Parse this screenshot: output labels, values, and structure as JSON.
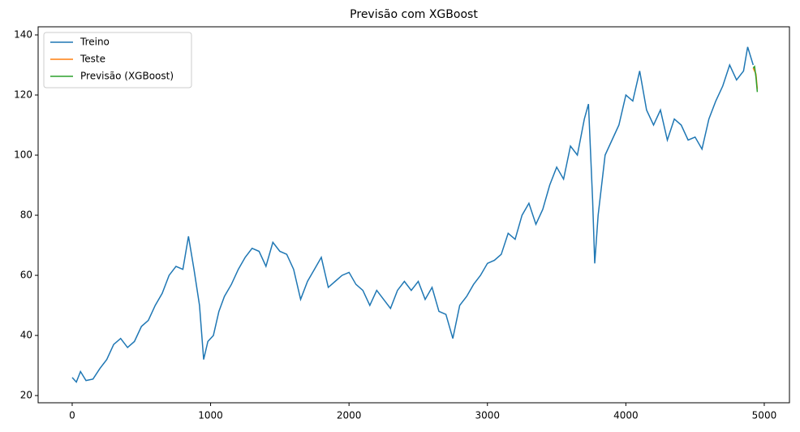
{
  "chart_data": {
    "type": "line",
    "title": "Previsão com XGBoost",
    "xlim": [
      -246,
      5182
    ],
    "xticks": [
      0,
      1000,
      2000,
      3000,
      4000,
      5000
    ],
    "ylim": [
      17.6,
      142.7
    ],
    "yticks": [
      20,
      40,
      60,
      80,
      100,
      120,
      140
    ],
    "legend": "upper left",
    "series": [
      {
        "name": "Treino",
        "color": "#1f77b4",
        "x": [
          0,
          30,
          60,
          100,
          150,
          200,
          250,
          300,
          350,
          400,
          450,
          500,
          550,
          600,
          650,
          700,
          750,
          800,
          840,
          880,
          920,
          950,
          980,
          1020,
          1060,
          1100,
          1150,
          1200,
          1250,
          1300,
          1350,
          1400,
          1450,
          1500,
          1550,
          1600,
          1650,
          1700,
          1750,
          1800,
          1850,
          1900,
          1950,
          2000,
          2050,
          2100,
          2150,
          2200,
          2250,
          2300,
          2350,
          2400,
          2450,
          2500,
          2550,
          2600,
          2650,
          2700,
          2750,
          2800,
          2850,
          2900,
          2950,
          3000,
          3050,
          3100,
          3150,
          3200,
          3250,
          3300,
          3350,
          3400,
          3450,
          3500,
          3550,
          3600,
          3650,
          3700,
          3730,
          3760,
          3775,
          3800,
          3850,
          3900,
          3950,
          4000,
          4050,
          4100,
          4150,
          4200,
          4250,
          4300,
          4350,
          4400,
          4450,
          4500,
          4550,
          4600,
          4650,
          4700,
          4750,
          4800,
          4850,
          4880,
          4920
        ],
        "values": [
          26,
          24.5,
          28,
          25,
          25.5,
          29,
          32,
          37,
          39,
          36,
          38,
          43,
          45,
          50,
          54,
          60,
          63,
          62,
          73,
          62,
          50,
          32,
          38,
          40,
          48,
          53,
          57,
          62,
          66,
          69,
          68,
          63,
          71,
          68,
          67,
          62,
          52,
          58,
          62,
          66,
          56,
          58,
          60,
          61,
          57,
          55,
          50,
          55,
          52,
          49,
          55,
          58,
          55,
          58,
          52,
          56,
          48,
          47,
          39,
          50,
          53,
          57,
          60,
          64,
          65,
          67,
          74,
          72,
          80,
          84,
          77,
          82,
          90,
          96,
          92,
          103,
          100,
          112,
          117,
          85,
          64,
          80,
          100,
          105,
          110,
          120,
          118,
          128,
          115,
          110,
          115,
          105,
          112,
          110,
          105,
          106,
          102,
          112,
          118,
          123,
          130,
          125,
          128,
          136,
          130
        ]
      },
      {
        "name": "Teste",
        "color": "#ff7f0e",
        "x": [
          4920,
          4930,
          4940,
          4950
        ],
        "values": [
          129,
          128,
          127,
          122
        ]
      },
      {
        "name": "Previsão (XGBoost)",
        "color": "#2ca02c",
        "x": [
          4920,
          4930,
          4940,
          4950
        ],
        "values": [
          129,
          129.5,
          126,
          121
        ]
      }
    ]
  }
}
